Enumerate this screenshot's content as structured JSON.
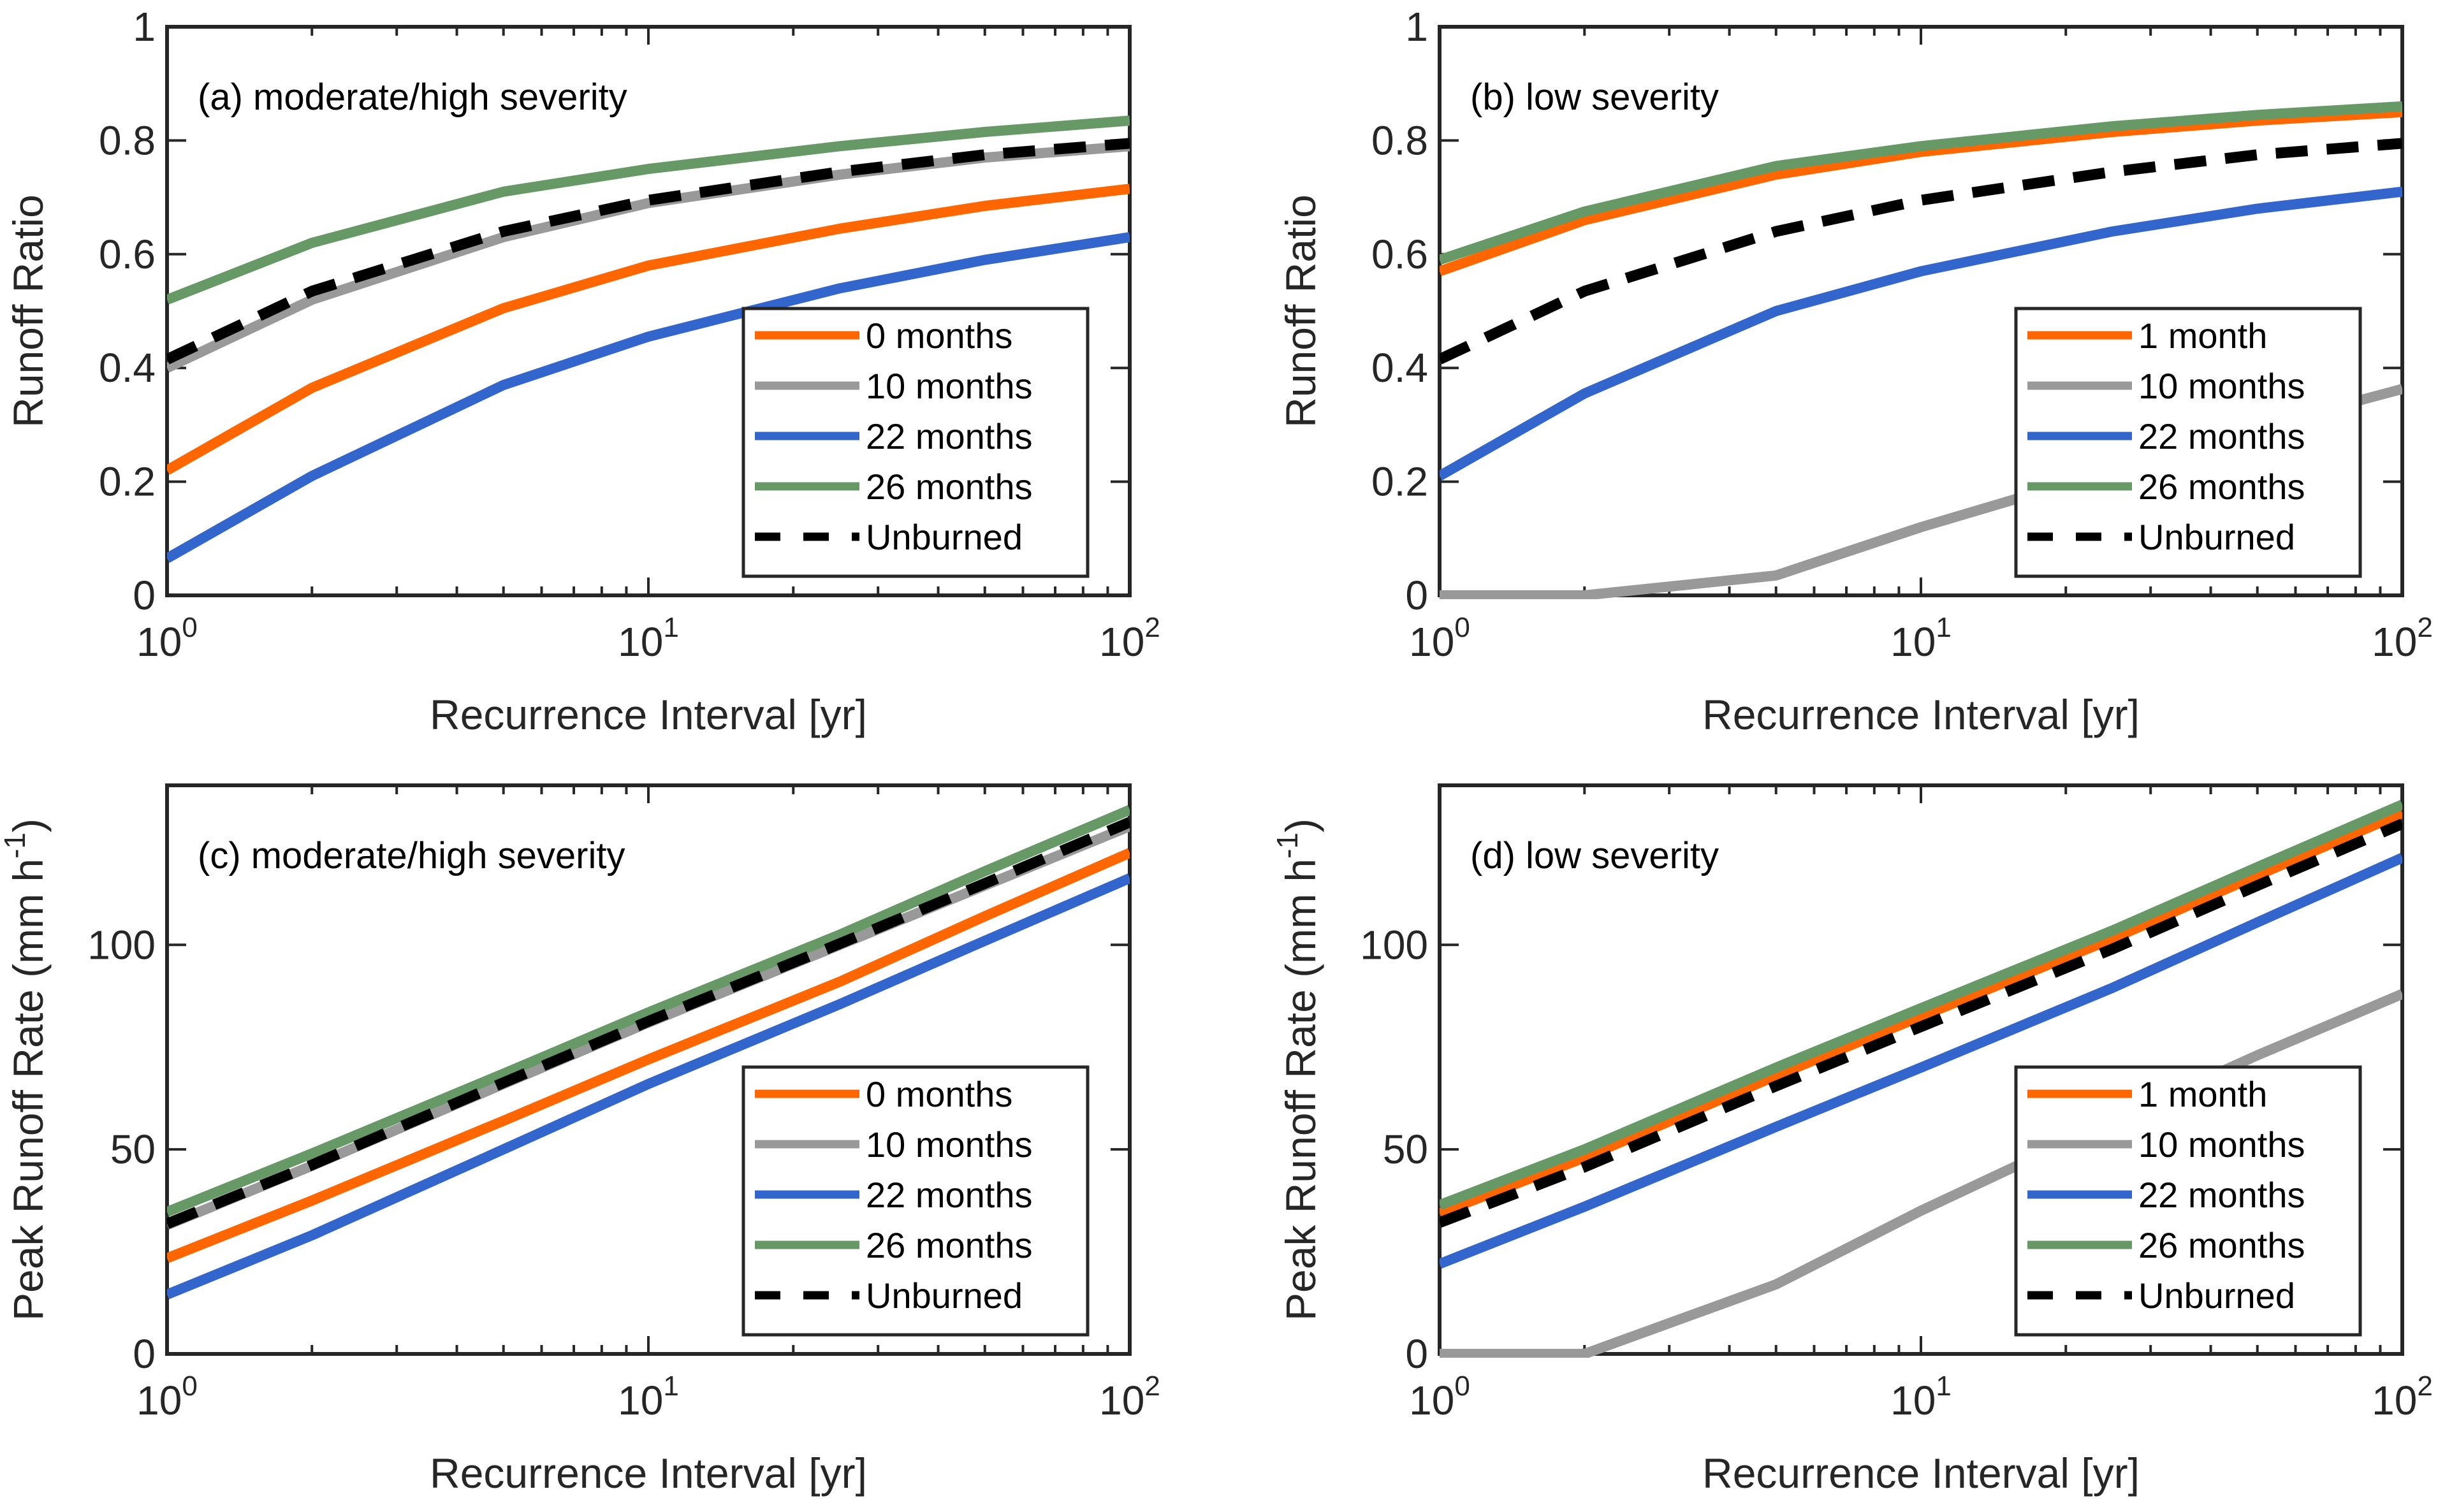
{
  "figure": {
    "layout": "2x2 grid",
    "x_axis_label": "Recurrence Interval [yr]"
  },
  "chart_data": [
    {
      "id": "a",
      "type": "line",
      "title": "(a) moderate/high severity",
      "xlabel": "Recurrence Interval [yr]",
      "ylabel": "Runoff Ratio",
      "ylabel_superscript": "",
      "xscale": "log",
      "xlim": [
        1,
        100
      ],
      "ylim": [
        0,
        1
      ],
      "xticks": [
        {
          "value": 1,
          "base": "10",
          "exp": "0"
        },
        {
          "value": 10,
          "base": "10",
          "exp": "1"
        },
        {
          "value": 100,
          "base": "10",
          "exp": "2"
        }
      ],
      "yticks": [
        0,
        0.2,
        0.4,
        0.6,
        0.8,
        1
      ],
      "ytick_labels": [
        "0",
        "0.2",
        "0.4",
        "0.6",
        "0.8",
        "1"
      ],
      "grid": false,
      "legend_position": "bottom-right",
      "x": [
        1,
        2,
        5,
        10,
        25,
        50,
        100
      ],
      "series": [
        {
          "name": "0 months",
          "color": "#FF6600",
          "dash": "solid",
          "values": [
            0.22,
            0.365,
            0.505,
            0.58,
            0.645,
            0.685,
            0.715
          ]
        },
        {
          "name": "10 months",
          "color": "#999999",
          "dash": "solid",
          "values": [
            0.4,
            0.52,
            0.63,
            0.69,
            0.74,
            0.77,
            0.79
          ]
        },
        {
          "name": "22 months",
          "color": "#3366CC",
          "dash": "solid",
          "values": [
            0.065,
            0.21,
            0.37,
            0.455,
            0.54,
            0.59,
            0.63
          ]
        },
        {
          "name": "26 months",
          "color": "#669966",
          "dash": "solid",
          "values": [
            0.52,
            0.62,
            0.71,
            0.75,
            0.79,
            0.815,
            0.835
          ]
        },
        {
          "name": "Unburned",
          "color": "#000000",
          "dash": "dashed",
          "values": [
            0.415,
            0.535,
            0.64,
            0.695,
            0.745,
            0.775,
            0.795
          ]
        }
      ]
    },
    {
      "id": "b",
      "type": "line",
      "title": "(b) low severity",
      "xlabel": "Recurrence Interval [yr]",
      "ylabel": "Runoff Ratio",
      "ylabel_superscript": "",
      "xscale": "log",
      "xlim": [
        1,
        100
      ],
      "ylim": [
        0,
        1
      ],
      "xticks": [
        {
          "value": 1,
          "base": "10",
          "exp": "0"
        },
        {
          "value": 10,
          "base": "10",
          "exp": "1"
        },
        {
          "value": 100,
          "base": "10",
          "exp": "2"
        }
      ],
      "yticks": [
        0,
        0.2,
        0.4,
        0.6,
        0.8,
        1
      ],
      "ytick_labels": [
        "0",
        "0.2",
        "0.4",
        "0.6",
        "0.8",
        "1"
      ],
      "grid": false,
      "legend_position": "bottom-right",
      "x": [
        1,
        2,
        5,
        10,
        25,
        50,
        100
      ],
      "series": [
        {
          "name": "1 month",
          "color": "#FF6600",
          "dash": "solid",
          "values": [
            0.57,
            0.66,
            0.74,
            0.78,
            0.815,
            0.835,
            0.85
          ]
        },
        {
          "name": "10 months",
          "color": "#999999",
          "dash": "solid",
          "values": [
            0.0,
            0.0,
            0.035,
            0.12,
            0.22,
            0.295,
            0.363
          ]
        },
        {
          "name": "22 months",
          "color": "#3366CC",
          "dash": "solid",
          "values": [
            0.21,
            0.355,
            0.5,
            0.57,
            0.64,
            0.68,
            0.71
          ]
        },
        {
          "name": "26 months",
          "color": "#669966",
          "dash": "solid",
          "values": [
            0.59,
            0.675,
            0.755,
            0.79,
            0.825,
            0.845,
            0.86
          ]
        },
        {
          "name": "Unburned",
          "color": "#000000",
          "dash": "dashed",
          "values": [
            0.415,
            0.535,
            0.64,
            0.695,
            0.745,
            0.775,
            0.795
          ]
        }
      ]
    },
    {
      "id": "c",
      "type": "line",
      "title": "(c) moderate/high severity",
      "xlabel": "Recurrence Interval [yr]",
      "ylabel": "Peak Runoff Rate (mm h",
      "ylabel_superscript": "-1",
      "ylabel_suffix": ")",
      "xscale": "log",
      "xlim": [
        1,
        100
      ],
      "ylim": [
        0,
        139
      ],
      "xticks": [
        {
          "value": 1,
          "base": "10",
          "exp": "0"
        },
        {
          "value": 10,
          "base": "10",
          "exp": "1"
        },
        {
          "value": 100,
          "base": "10",
          "exp": "2"
        }
      ],
      "yticks": [
        0,
        50,
        100
      ],
      "ytick_labels": [
        "0",
        "50",
        "100"
      ],
      "grid": false,
      "legend_position": "bottom-right",
      "x": [
        1,
        2,
        5,
        10,
        25,
        50,
        100
      ],
      "series": [
        {
          "name": "0 months",
          "color": "#FF6600",
          "dash": "solid",
          "values": [
            23.4,
            37.5,
            57,
            72,
            91,
            107,
            122.5
          ]
        },
        {
          "name": "10 months",
          "color": "#999999",
          "dash": "solid",
          "values": [
            31.5,
            46,
            66,
            81,
            100,
            114.5,
            129
          ]
        },
        {
          "name": "22 months",
          "color": "#3366CC",
          "dash": "solid",
          "values": [
            14.5,
            29,
            50,
            66,
            85.5,
            101,
            116.3
          ]
        },
        {
          "name": "26 months",
          "color": "#669966",
          "dash": "solid",
          "values": [
            34.7,
            49,
            68.5,
            83.5,
            102.5,
            118,
            133
          ]
        },
        {
          "name": "Unburned",
          "color": "#000000",
          "dash": "dashed",
          "values": [
            31.8,
            46.2,
            66.3,
            81.3,
            100.3,
            115,
            130
          ]
        }
      ]
    },
    {
      "id": "d",
      "type": "line",
      "title": "(d) low severity",
      "xlabel": "Recurrence Interval [yr]",
      "ylabel": "Peak Runoff Rate (mm h",
      "ylabel_superscript": "-1",
      "ylabel_suffix": ")",
      "xscale": "log",
      "xlim": [
        1,
        100
      ],
      "ylim": [
        0,
        139
      ],
      "xticks": [
        {
          "value": 1,
          "base": "10",
          "exp": "0"
        },
        {
          "value": 10,
          "base": "10",
          "exp": "1"
        },
        {
          "value": 100,
          "base": "10",
          "exp": "2"
        }
      ],
      "yticks": [
        0,
        50,
        100
      ],
      "ytick_labels": [
        "0",
        "50",
        "100"
      ],
      "grid": false,
      "legend_position": "bottom-right",
      "x": [
        1,
        2,
        5,
        10,
        25,
        50,
        100
      ],
      "series": [
        {
          "name": "1 month",
          "color": "#FF6600",
          "dash": "solid",
          "values": [
            34.4,
            48,
            68,
            82.5,
            101.5,
            117,
            132.2
          ]
        },
        {
          "name": "10 months",
          "color": "#999999",
          "dash": "solid",
          "values": [
            0,
            0,
            17,
            35,
            57,
            73,
            88
          ]
        },
        {
          "name": "22 months",
          "color": "#3366CC",
          "dash": "solid",
          "values": [
            22,
            36,
            55.5,
            70,
            89.5,
            105.5,
            121.3
          ]
        },
        {
          "name": "26 months",
          "color": "#669966",
          "dash": "solid",
          "values": [
            36.4,
            50,
            70,
            84.5,
            103.5,
            119,
            134.3
          ]
        },
        {
          "name": "Unburned",
          "color": "#000000",
          "dash": "dashed",
          "values": [
            32.1,
            45.7,
            65.5,
            80,
            99,
            114.5,
            129.6
          ]
        }
      ]
    }
  ]
}
